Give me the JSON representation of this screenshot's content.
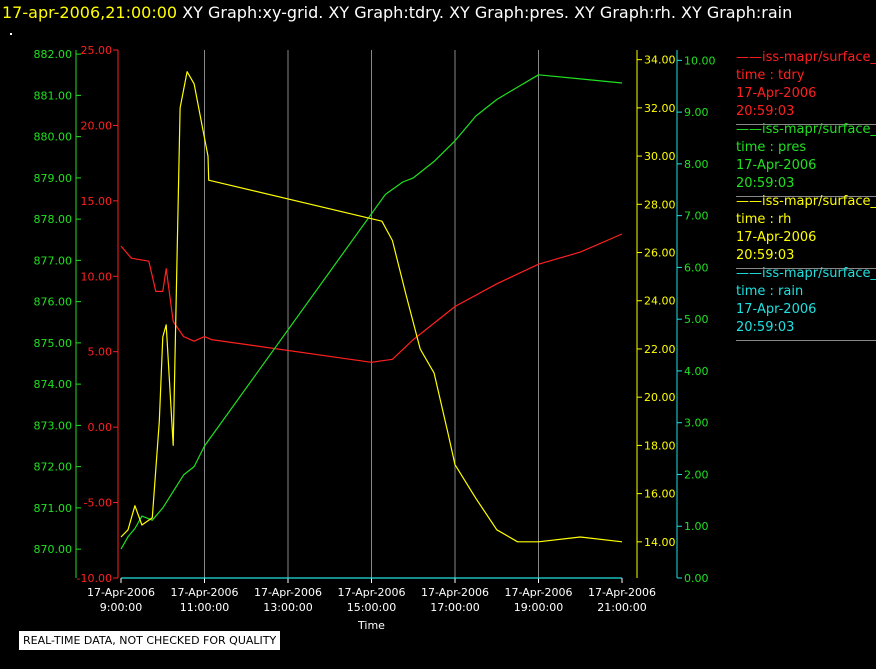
{
  "header": {
    "timestamp": "17-apr-2006,21:00:00",
    "title": "XY Graph:xy-grid.  XY Graph:tdry.  XY Graph:pres.  XY Graph:rh.  XY Graph:rain"
  },
  "footer": {
    "notice": "REAL-TIME DATA, NOT CHECKED FOR QUALITY"
  },
  "colors": {
    "tdry": "#ff2020",
    "pres": "#20e020",
    "rh": "#ffff00",
    "rain": "#20e0e0",
    "grid": "#888888",
    "axis": "#ffffff"
  },
  "legend": [
    {
      "name": "iss-mapr/surface_",
      "label": "time : tdry",
      "date": "17-Apr-2006",
      "time": "20:59:03",
      "color": "#ff2020"
    },
    {
      "name": "iss-mapr/surface_",
      "label": "time : pres",
      "date": "17-Apr-2006",
      "time": "20:59:03",
      "color": "#20e020"
    },
    {
      "name": "iss-mapr/surface_",
      "label": "time : rh",
      "date": "17-Apr-2006",
      "time": "20:59:03",
      "color": "#ffff00"
    },
    {
      "name": "iss-mapr/surface_",
      "label": "time : rain",
      "date": "17-Apr-2006",
      "time": "20:59:03",
      "color": "#20e0e0"
    }
  ],
  "chart_data": {
    "type": "line",
    "xlabel": "Time",
    "xlim": [
      "17-Apr-2006 09:00:00",
      "17-Apr-2006 21:00:00"
    ],
    "x_ticks": [
      {
        "date": "17-Apr-2006",
        "time": "9:00:00"
      },
      {
        "date": "17-Apr-2006",
        "time": "11:00:00"
      },
      {
        "date": "17-Apr-2006",
        "time": "13:00:00"
      },
      {
        "date": "17-Apr-2006",
        "time": "15:00:00"
      },
      {
        "date": "17-Apr-2006",
        "time": "17:00:00"
      },
      {
        "date": "17-Apr-2006",
        "time": "19:00:00"
      },
      {
        "date": "17-Apr-2006",
        "time": "21:00:00"
      }
    ],
    "grid": true,
    "axes": {
      "tdry": {
        "range": [
          -10,
          25
        ],
        "ticks": [
          "-10.00",
          "-5.00",
          "0.00",
          "5.00",
          "10.00",
          "15.00",
          "20.00",
          "25.00"
        ],
        "color": "#ff2020"
      },
      "pres": {
        "range": [
          869.3,
          882.1
        ],
        "ticks": [
          "870.00",
          "871.00",
          "872.00",
          "873.00",
          "874.00",
          "875.00",
          "876.00",
          "877.00",
          "878.00",
          "879.00",
          "880.00",
          "881.00",
          "882.00"
        ],
        "color": "#20e020"
      },
      "rh": {
        "range": [
          12.5,
          34.4
        ],
        "ticks": [
          "14.00",
          "16.00",
          "18.00",
          "20.00",
          "22.00",
          "24.00",
          "26.00",
          "28.00",
          "30.00",
          "32.00",
          "34.00"
        ],
        "color": "#ffff00"
      },
      "rain": {
        "range": [
          0,
          10.2
        ],
        "ticks": [
          "0.00",
          "1.00",
          "2.00",
          "3.00",
          "4.00",
          "5.00",
          "6.00",
          "7.00",
          "8.00",
          "9.00",
          "10.00"
        ],
        "color": "#20e020"
      }
    },
    "series": [
      {
        "name": "tdry",
        "axis": "tdry",
        "color": "#ff2020",
        "x": [
          "17-Apr-2006 09:00:00",
          "17-Apr-2006 09:15:00",
          "17-Apr-2006 09:40:00",
          "17-Apr-2006 09:50:00",
          "17-Apr-2006 10:00:00",
          "17-Apr-2006 10:05:00",
          "17-Apr-2006 10:15:00",
          "17-Apr-2006 10:30:00",
          "17-Apr-2006 10:45:00",
          "17-Apr-2006 11:00:00",
          "17-Apr-2006 11:10:00",
          "17-Apr-2006 15:00:00",
          "17-Apr-2006 15:30:00",
          "17-Apr-2006 16:00:00",
          "17-Apr-2006 17:00:00",
          "17-Apr-2006 18:00:00",
          "17-Apr-2006 19:00:00",
          "17-Apr-2006 20:00:00",
          "17-Apr-2006 21:00:00"
        ],
        "y": [
          12.0,
          11.2,
          11.0,
          9.0,
          9.0,
          10.5,
          7.0,
          6.0,
          5.7,
          6.0,
          5.8,
          4.3,
          4.5,
          5.8,
          8.0,
          9.5,
          10.8,
          11.6,
          12.8
        ]
      },
      {
        "name": "pres",
        "axis": "pres",
        "color": "#20e020",
        "x": [
          "17-Apr-2006 09:00:00",
          "17-Apr-2006 09:10:00",
          "17-Apr-2006 09:20:00",
          "17-Apr-2006 09:30:00",
          "17-Apr-2006 09:45:00",
          "17-Apr-2006 10:00:00",
          "17-Apr-2006 10:15:00",
          "17-Apr-2006 10:30:00",
          "17-Apr-2006 10:45:00",
          "17-Apr-2006 11:00:00",
          "17-Apr-2006 15:20:00",
          "17-Apr-2006 15:45:00",
          "17-Apr-2006 16:00:00",
          "17-Apr-2006 16:30:00",
          "17-Apr-2006 17:00:00",
          "17-Apr-2006 17:30:00",
          "17-Apr-2006 18:00:00",
          "17-Apr-2006 18:30:00",
          "17-Apr-2006 19:00:00",
          "17-Apr-2006 20:00:00",
          "17-Apr-2006 21:00:00"
        ],
        "y": [
          870.0,
          870.3,
          870.5,
          870.8,
          870.7,
          871.0,
          871.4,
          871.8,
          872.0,
          872.5,
          878.6,
          878.9,
          879.0,
          879.4,
          879.9,
          880.5,
          880.9,
          881.2,
          881.5,
          881.4,
          881.3
        ]
      },
      {
        "name": "rh",
        "axis": "rh",
        "color": "#ffff00",
        "x": [
          "17-Apr-2006 09:00:00",
          "17-Apr-2006 09:10:00",
          "17-Apr-2006 09:20:00",
          "17-Apr-2006 09:30:00",
          "17-Apr-2006 09:45:00",
          "17-Apr-2006 09:55:00",
          "17-Apr-2006 10:00:00",
          "17-Apr-2006 10:05:00",
          "17-Apr-2006 10:15:00",
          "17-Apr-2006 10:25:00",
          "17-Apr-2006 10:35:00",
          "17-Apr-2006 10:45:00",
          "17-Apr-2006 10:55:00",
          "17-Apr-2006 11:05:00",
          "17-Apr-2006 11:06:00",
          "17-Apr-2006 15:15:00",
          "17-Apr-2006 15:30:00",
          "17-Apr-2006 15:50:00",
          "17-Apr-2006 16:10:00",
          "17-Apr-2006 16:30:00",
          "17-Apr-2006 16:50:00",
          "17-Apr-2006 17:00:00",
          "17-Apr-2006 17:30:00",
          "17-Apr-2006 18:00:00",
          "17-Apr-2006 18:30:00",
          "17-Apr-2006 19:00:00",
          "17-Apr-2006 20:00:00",
          "17-Apr-2006 21:00:00"
        ],
        "y": [
          14.2,
          14.5,
          15.5,
          14.7,
          15.0,
          19.0,
          22.5,
          23.0,
          18.0,
          32.0,
          33.5,
          33.0,
          31.5,
          30.0,
          29.0,
          27.3,
          26.5,
          24.2,
          22.0,
          21.0,
          18.5,
          17.2,
          15.8,
          14.5,
          14.0,
          14.0,
          14.2,
          14.0
        ]
      },
      {
        "name": "rain",
        "axis": "rain",
        "color": "#20e0e0",
        "x": [
          "17-Apr-2006 09:00:00",
          "17-Apr-2006 21:00:00"
        ],
        "y": [
          0.0,
          0.0
        ]
      }
    ]
  }
}
